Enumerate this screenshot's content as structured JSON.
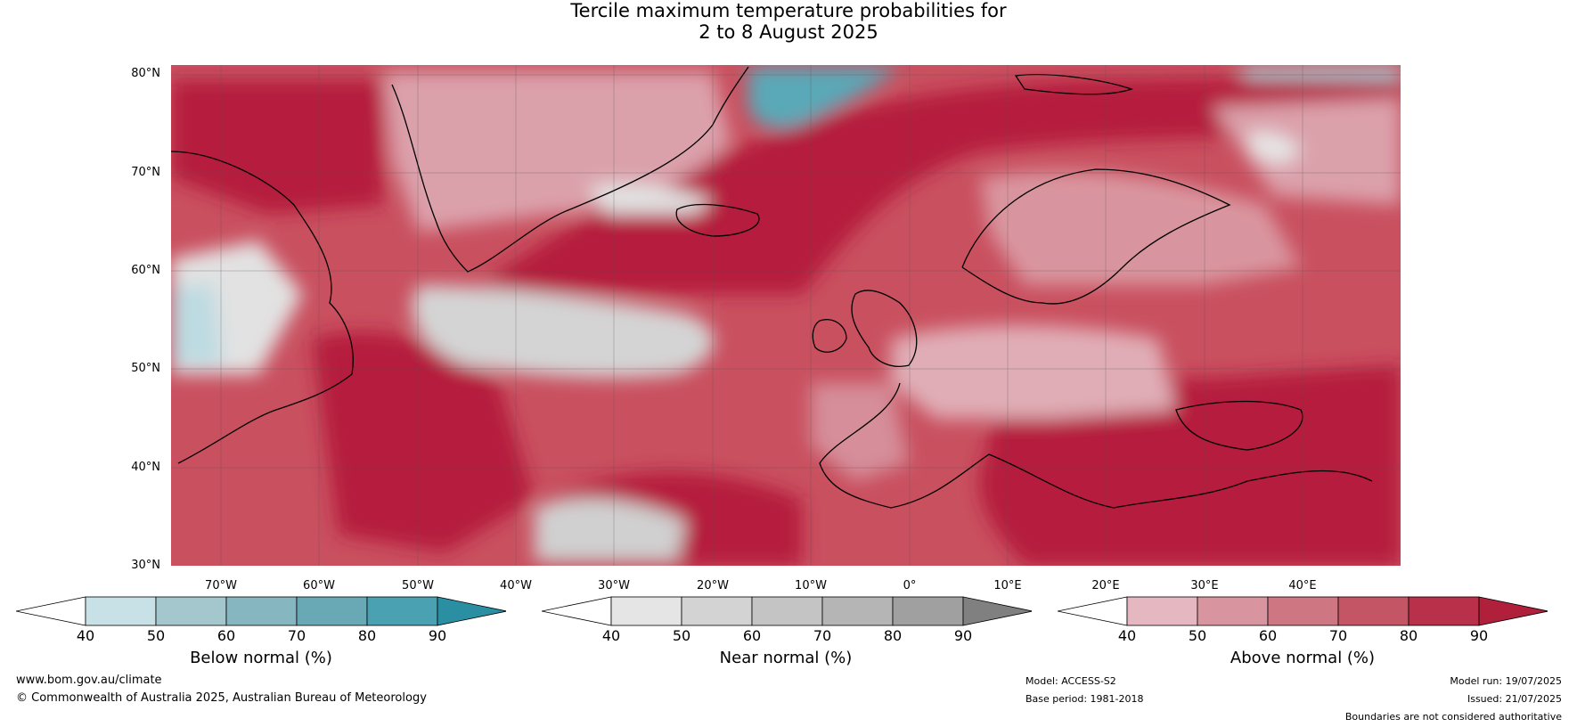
{
  "title": {
    "line1": "Tercile maximum temperature probabilities for",
    "line2": "2 to 8 August 2025"
  },
  "map": {
    "lat_labels": [
      "80°N",
      "70°N",
      "60°N",
      "50°N",
      "40°N",
      "30°N"
    ],
    "lon_labels": [
      "70°W",
      "60°W",
      "50°W",
      "40°W",
      "30°W",
      "20°W",
      "10°W",
      "0°",
      "10°E",
      "20°E",
      "30°E",
      "40°E"
    ],
    "extent": {
      "lon_min": -76,
      "lon_max": 49,
      "lat_min": 30,
      "lat_max": 81
    },
    "colors": {
      "above_light": "#e5b9c1",
      "above_mid1": "#d99aa5",
      "above_mid2": "#cd7986",
      "above_mid3": "#c25568",
      "above_dark": "#b51f3c",
      "near_light": "#e6e6e6",
      "near_mid": "#c8c8c8",
      "near_dark": "#a8a8a8",
      "below_light": "#c9e2e8",
      "below_mid": "#7fb6c2",
      "below_dark": "#3f9fb0",
      "coast": "#000000",
      "border": "#777777",
      "grid": "#555555"
    }
  },
  "colorbars": [
    {
      "name": "below",
      "label": "Below normal (%)",
      "ticks": [
        "40",
        "50",
        "60",
        "70",
        "80",
        "90"
      ],
      "colors": [
        "#ffffff",
        "#c7e1e7",
        "#a4c7cd",
        "#86b6bf",
        "#68a9b5",
        "#4aa1b1",
        "#2a8fa2"
      ]
    },
    {
      "name": "near",
      "label": "Near normal (%)",
      "ticks": [
        "40",
        "50",
        "60",
        "70",
        "80",
        "90"
      ],
      "colors": [
        "#ffffff",
        "#e5e5e5",
        "#d3d3d3",
        "#c4c4c4",
        "#b5b5b5",
        "#a0a0a0",
        "#808080"
      ]
    },
    {
      "name": "above",
      "label": "Above normal (%)",
      "ticks": [
        "40",
        "50",
        "60",
        "70",
        "80",
        "90"
      ],
      "colors": [
        "#ffffff",
        "#e5b8c1",
        "#d9959f",
        "#ce7783",
        "#c45565",
        "#b8304a",
        "#b0203b"
      ]
    }
  ],
  "footer": {
    "url": "www.bom.gov.au/climate",
    "copyright": "© Commonwealth of Australia 2025, Australian Bureau of Meteorology",
    "model": "Model: ACCESS-S2",
    "base_period": "Base period: 1981-2018",
    "model_run": "Model run: 19/07/2025",
    "issued": "Issued: 21/07/2025",
    "disclaimer": "Boundaries are not considered authoritative"
  }
}
